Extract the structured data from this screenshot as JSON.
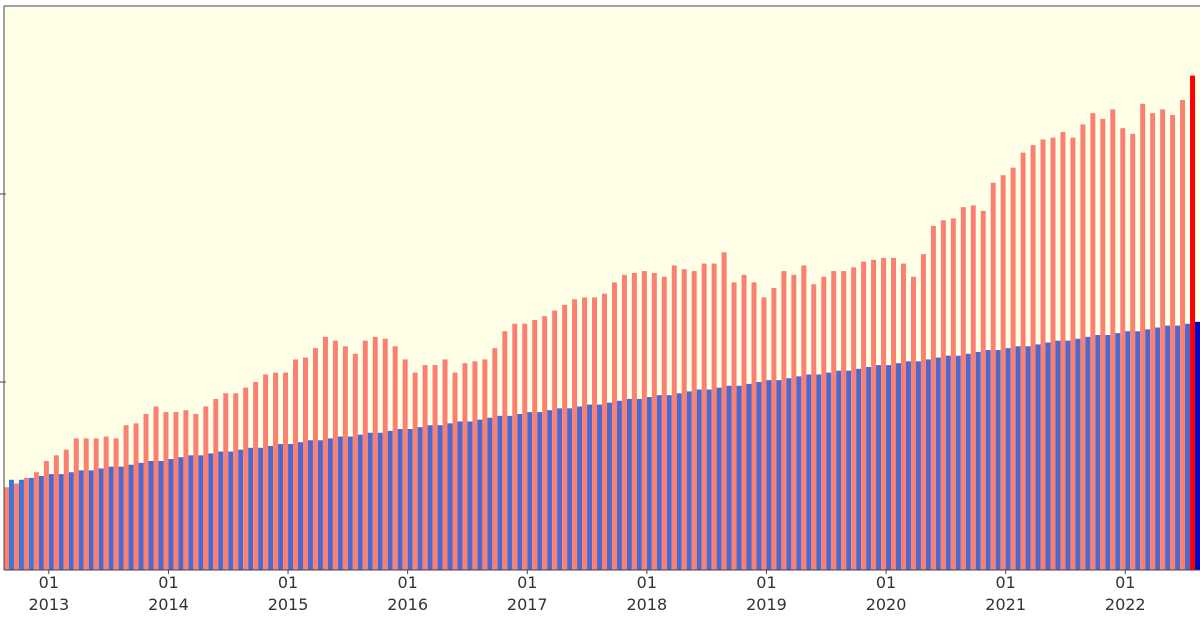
{
  "chart_data": {
    "type": "bar",
    "title": "",
    "xlabel": "",
    "ylabel": "",
    "grid": false,
    "legend": "none",
    "ylim": [
      0,
      300
    ],
    "start_month": "2012-09",
    "x_tick_month_label": "01",
    "x_tick_year_labels": [
      "2013",
      "2014",
      "2015",
      "2016",
      "2017",
      "2018",
      "2019",
      "2020",
      "2021",
      "2022"
    ],
    "colors": {
      "plot_background": "#ffffe8",
      "series_a": "#fa8072",
      "series_a_highlight": "#ff0000",
      "series_b": "#4f68cc",
      "series_b_early": "#3f74d8",
      "series_b_highlight": "#0000cc",
      "axis": "#444444"
    },
    "series": [
      {
        "values": [
          44,
          46,
          49,
          52,
          58,
          61,
          64,
          70,
          70,
          70,
          71,
          70,
          77,
          78,
          83,
          87,
          84,
          84,
          85,
          83,
          87,
          91,
          94,
          94,
          97,
          100,
          104,
          105,
          105,
          112,
          113,
          118,
          124,
          122,
          119,
          115,
          122,
          124,
          123,
          119,
          112,
          105,
          109,
          109,
          112,
          105,
          110,
          111,
          112,
          118,
          127,
          131,
          131,
          133,
          135,
          138,
          141,
          144,
          145,
          145,
          147,
          153,
          157,
          158,
          159,
          158,
          156,
          162,
          160,
          159,
          163,
          163,
          169,
          153,
          157,
          153,
          145,
          150,
          159,
          157,
          162,
          152,
          156,
          159,
          159,
          161,
          164,
          165,
          166,
          166,
          163,
          156,
          168,
          183,
          186,
          187,
          193,
          194,
          191,
          206,
          210,
          214,
          222,
          226,
          229,
          230,
          233,
          230,
          237,
          243,
          240,
          245,
          235,
          232,
          248,
          243,
          245,
          242,
          250,
          263
        ]
      },
      {
        "values": [
          48,
          48,
          49,
          50,
          51,
          51,
          52,
          53,
          53,
          54,
          55,
          55,
          56,
          57,
          58,
          58,
          59,
          60,
          61,
          61,
          62,
          63,
          63,
          64,
          65,
          65,
          66,
          67,
          67,
          68,
          69,
          69,
          70,
          71,
          71,
          72,
          73,
          73,
          74,
          75,
          75,
          76,
          77,
          77,
          78,
          79,
          79,
          80,
          81,
          82,
          82,
          83,
          84,
          84,
          85,
          86,
          86,
          87,
          88,
          88,
          89,
          90,
          91,
          91,
          92,
          93,
          93,
          94,
          95,
          96,
          96,
          97,
          98,
          98,
          99,
          100,
          101,
          101,
          102,
          103,
          104,
          104,
          105,
          106,
          106,
          107,
          108,
          109,
          109,
          110,
          111,
          111,
          112,
          113,
          114,
          114,
          115,
          116,
          117,
          117,
          118,
          119,
          119,
          120,
          121,
          122,
          122,
          123,
          124,
          125,
          125,
          126,
          127,
          127,
          128,
          129,
          130,
          130,
          131,
          132
        ]
      }
    ]
  }
}
